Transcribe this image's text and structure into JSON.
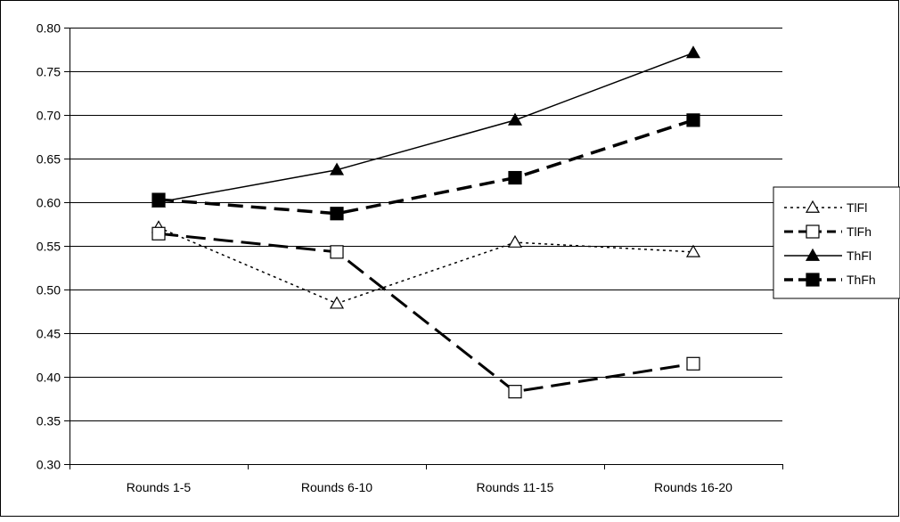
{
  "chart_data": {
    "type": "line",
    "title": "",
    "xlabel": "",
    "ylabel": "",
    "categories": [
      "Rounds 1-5",
      "Rounds 6-10",
      "Rounds 11-15",
      "Rounds 16-20"
    ],
    "ylim": [
      0.3,
      0.8
    ],
    "y_ticks": [
      "0.30",
      "0.35",
      "0.40",
      "0.45",
      "0.50",
      "0.55",
      "0.60",
      "0.65",
      "0.70",
      "0.75",
      "0.80"
    ],
    "grid": "horizontal",
    "legend_position": "right",
    "series": [
      {
        "name": "TlFl",
        "values": [
          0.571,
          0.484,
          0.554,
          0.543
        ],
        "line": "dotted",
        "marker": "open-triangle",
        "color": "#000000"
      },
      {
        "name": "TlFh",
        "values": [
          0.564,
          0.543,
          0.383,
          0.415
        ],
        "line": "long-dash",
        "marker": "open-square",
        "color": "#000000"
      },
      {
        "name": "ThFl",
        "values": [
          0.6,
          0.637,
          0.694,
          0.771
        ],
        "line": "solid",
        "marker": "filled-triangle",
        "color": "#000000"
      },
      {
        "name": "ThFh",
        "values": [
          0.603,
          0.587,
          0.628,
          0.694
        ],
        "line": "dash",
        "marker": "filled-square",
        "color": "#000000"
      }
    ]
  }
}
